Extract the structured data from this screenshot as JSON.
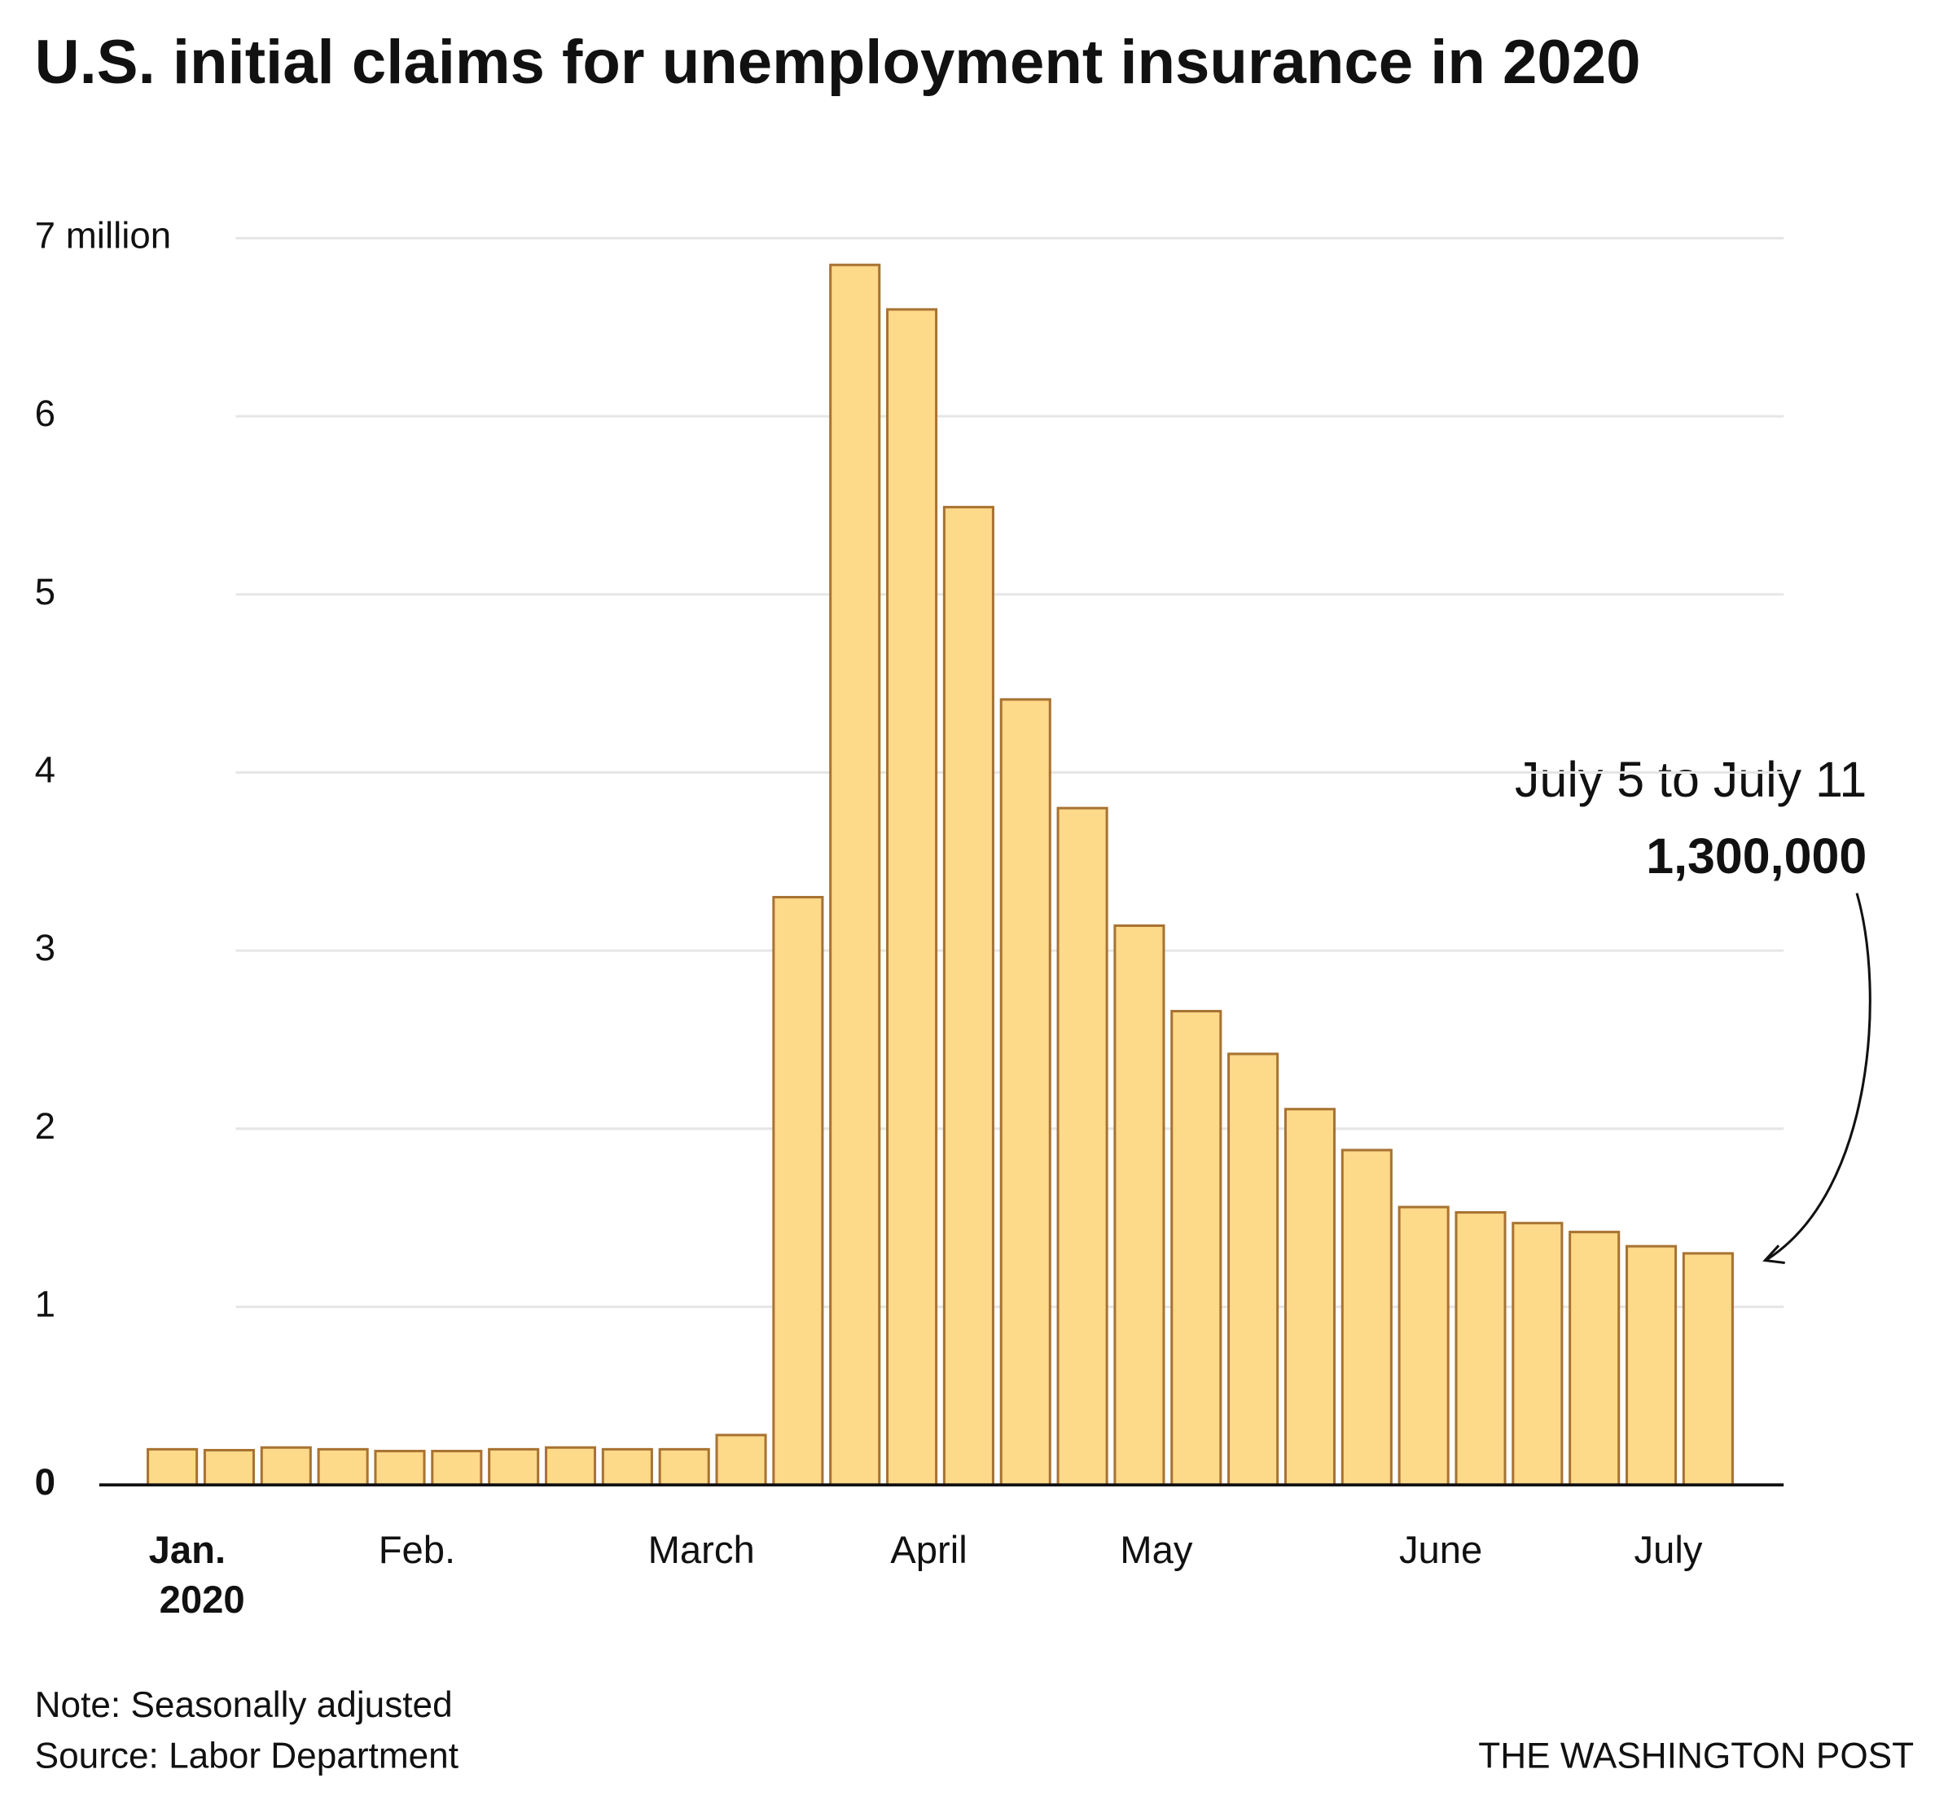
{
  "chart_data": {
    "type": "bar",
    "title": "U.S. initial claims for unemployment insurance in 2020",
    "categories": [
      "Jan.",
      null,
      null,
      null,
      "Feb.",
      null,
      null,
      null,
      null,
      "March",
      null,
      null,
      null,
      "April",
      null,
      null,
      null,
      "May",
      null,
      null,
      null,
      null,
      "June",
      null,
      null,
      null,
      "July",
      null
    ],
    "first_category_sublabel": "2020",
    "values": [
      0.2,
      0.195,
      0.21,
      0.2,
      0.19,
      0.19,
      0.2,
      0.21,
      0.2,
      0.2,
      0.28,
      3.3,
      6.85,
      6.6,
      5.49,
      4.41,
      3.8,
      3.14,
      2.66,
      2.42,
      2.11,
      1.88,
      1.56,
      1.53,
      1.47,
      1.42,
      1.34,
      1.3
    ],
    "color": "#fdd98a",
    "edge_color": "#a87332",
    "ylim": [
      0,
      7
    ],
    "yticks": [
      0,
      1,
      2,
      3,
      4,
      5,
      6,
      {
        "value": 7,
        "label": "7 million"
      }
    ],
    "grid": true,
    "annotation": {
      "text": "July 5 to July 11",
      "value_label": "1,300,000"
    },
    "note": "Note: Seasonally adjusted",
    "source": "Source: Labor Department",
    "credit": "THE WASHINGTON POST"
  }
}
